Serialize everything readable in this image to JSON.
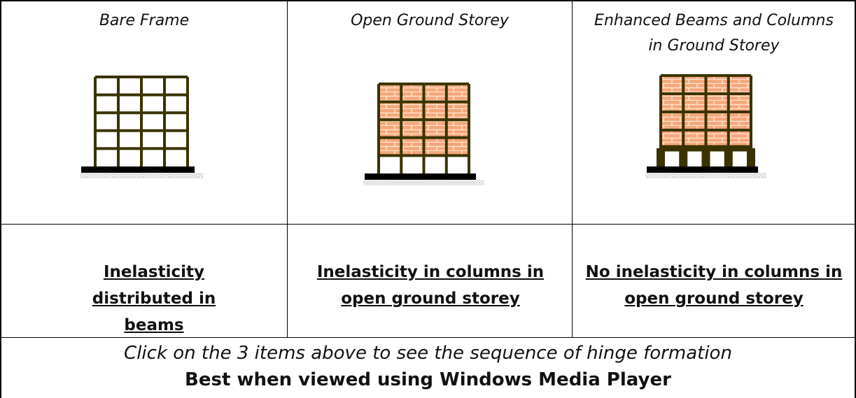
{
  "columns": [
    {
      "caption": "Bare Frame",
      "result": "Inelasticity distributed in beams"
    },
    {
      "caption": "Open Ground Storey",
      "result": "Inelasticity in columns in open ground storey"
    },
    {
      "caption": "Enhanced Beams and Columns in Ground Storey",
      "result": "No inelasticity in columns in open ground storey"
    }
  ],
  "footer": {
    "instruction": "Click on the 3 items above to see the sequence of hinge formation",
    "note": "Best when viewed using Windows Media Player"
  }
}
